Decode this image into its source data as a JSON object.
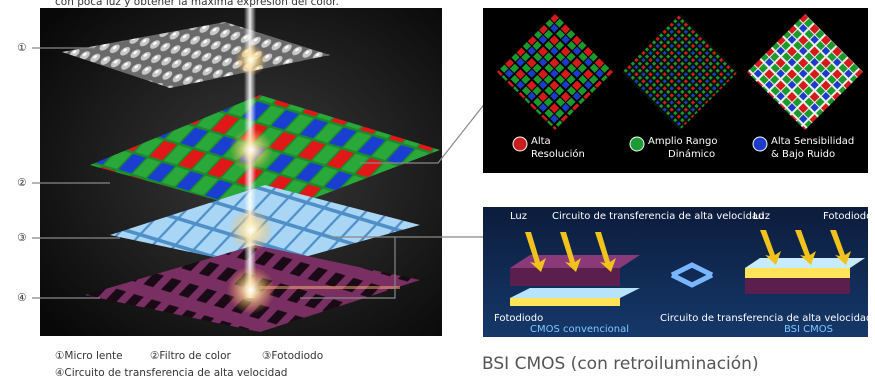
{
  "intro": "con poca luz y obtener la máxima expresión del color.",
  "callouts": [
    "①",
    "②",
    "③",
    "④"
  ],
  "legend": [
    "①Micro lente",
    "②Filtro de color",
    "③Fotodiodo",
    "④Circuito de transferencia de alta velocidad"
  ],
  "features": [
    {
      "lines": [
        "Alta",
        "Resolución"
      ]
    },
    {
      "lines": [
        "Amplio Rango",
        "Dinámico"
      ]
    },
    {
      "lines": [
        "Alta Sensibilidad",
        "& Bajo Ruido"
      ]
    }
  ],
  "comparison": {
    "conventional": {
      "light": "Luz",
      "circuit": "Circuito de transferencia de alta velocidad",
      "photodiode": "Fotodiodo",
      "title": "CMOS convencional"
    },
    "bsi": {
      "light": "Luz",
      "photodiode": "Fotodiodo",
      "circuit": "Circuito de transferencia de alta velocidad",
      "title": "BSI CMOS"
    }
  },
  "caption": "BSI CMOS (con retroiluminación)"
}
